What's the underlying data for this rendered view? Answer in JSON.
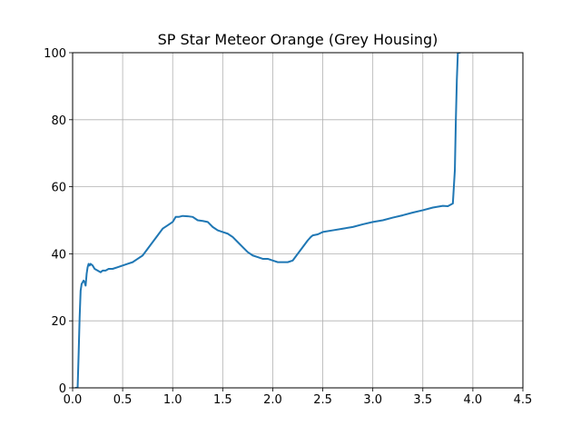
{
  "chart_data": {
    "type": "line",
    "title": "SP Star Meteor Orange (Grey Housing)",
    "xlabel": "",
    "ylabel": "",
    "xlim": [
      0,
      4.5
    ],
    "ylim": [
      0,
      100
    ],
    "xticks": [
      0.0,
      0.5,
      1.0,
      1.5,
      2.0,
      2.5,
      3.0,
      3.5,
      4.0,
      4.5
    ],
    "xtick_labels": [
      "0.0",
      "0.5",
      "1.0",
      "1.5",
      "2.0",
      "2.5",
      "3.0",
      "3.5",
      "4.0",
      "4.5"
    ],
    "yticks": [
      0,
      20,
      40,
      60,
      80,
      100
    ],
    "ytick_labels": [
      "0",
      "20",
      "40",
      "60",
      "80",
      "100"
    ],
    "grid": true,
    "series": [
      {
        "color": "#1f77b4",
        "x": [
          0.03,
          0.05,
          0.06,
          0.07,
          0.08,
          0.09,
          0.1,
          0.11,
          0.12,
          0.13,
          0.14,
          0.15,
          0.16,
          0.17,
          0.18,
          0.2,
          0.22,
          0.25,
          0.28,
          0.3,
          0.33,
          0.36,
          0.4,
          0.45,
          0.5,
          0.55,
          0.6,
          0.65,
          0.7,
          0.75,
          0.8,
          0.85,
          0.9,
          0.95,
          1.0,
          1.03,
          1.06,
          1.1,
          1.15,
          1.2,
          1.25,
          1.3,
          1.35,
          1.4,
          1.45,
          1.5,
          1.55,
          1.6,
          1.65,
          1.7,
          1.75,
          1.8,
          1.85,
          1.9,
          1.95,
          2.0,
          2.05,
          2.1,
          2.15,
          2.2,
          2.25,
          2.3,
          2.35,
          2.38,
          2.4,
          2.45,
          2.5,
          2.6,
          2.7,
          2.8,
          2.9,
          3.0,
          3.1,
          3.2,
          3.3,
          3.4,
          3.5,
          3.6,
          3.7,
          3.75,
          3.8,
          3.82,
          3.83,
          3.84,
          3.85,
          3.86,
          3.87
        ],
        "y": [
          0,
          0,
          10,
          21,
          29,
          31,
          31.5,
          32,
          31.5,
          30.5,
          34,
          36,
          37,
          36.5,
          37,
          36.5,
          35.5,
          35,
          34.5,
          35,
          35,
          35.5,
          35.5,
          36,
          36.5,
          37,
          37.5,
          38.5,
          39.5,
          41.5,
          43.5,
          45.5,
          47.5,
          48.5,
          49.5,
          51,
          51,
          51.3,
          51.2,
          51,
          50,
          49.8,
          49.5,
          48,
          47,
          46.5,
          46,
          45,
          43.5,
          42,
          40.5,
          39.5,
          39,
          38.5,
          38.5,
          38,
          37.5,
          37.5,
          37.5,
          38,
          40,
          42,
          44,
          45,
          45.5,
          45.8,
          46.5,
          47,
          47.5,
          48,
          48.8,
          49.5,
          50,
          50.8,
          51.5,
          52.3,
          53,
          53.8,
          54.3,
          54.2,
          55,
          65,
          80,
          92,
          100,
          100,
          100
        ]
      }
    ]
  }
}
